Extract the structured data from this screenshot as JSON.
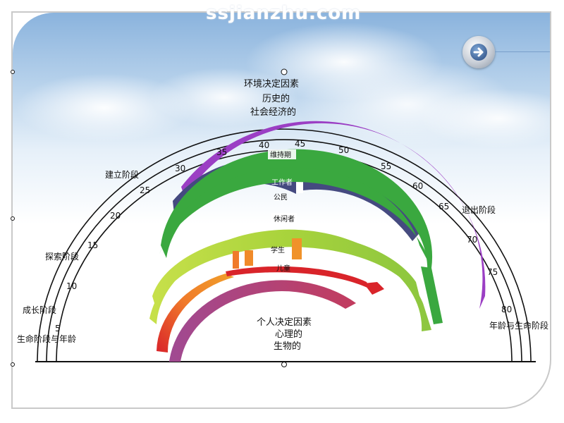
{
  "watermark": "ssjianzhu.com",
  "top_labels": {
    "line1": "环境决定因素",
    "line2": "历史的",
    "line3": "社会经济的"
  },
  "center_labels": {
    "line1": "个人决定因素",
    "line2": "心理的",
    "line3": "生物的"
  },
  "stages": {
    "establish": "建立阶段",
    "explore": "探索阶段",
    "growth": "成长阶段",
    "life_stage_age": "生命阶段与年龄",
    "decline": "退出阶段",
    "age_life_stage": "年龄与生命阶段"
  },
  "ages": [
    "5",
    "10",
    "15",
    "20",
    "25",
    "30",
    "35",
    "40",
    "45",
    "50",
    "55",
    "60",
    "65",
    "70",
    "75",
    "80"
  ],
  "roles": {
    "maintainer": "维持期",
    "worker": "工作者",
    "citizen": "公民",
    "leisurite": "休闲者",
    "student": "学生",
    "child": "儿童"
  },
  "colors": {
    "maintainer": "#9b3fc4",
    "worker": "#454a80",
    "citizen": "#3aa83f",
    "leisurite": "#9ccf3a",
    "student": "#e6602d",
    "child": "#b04a86"
  },
  "nav_icon": "arrow-right-icon"
}
